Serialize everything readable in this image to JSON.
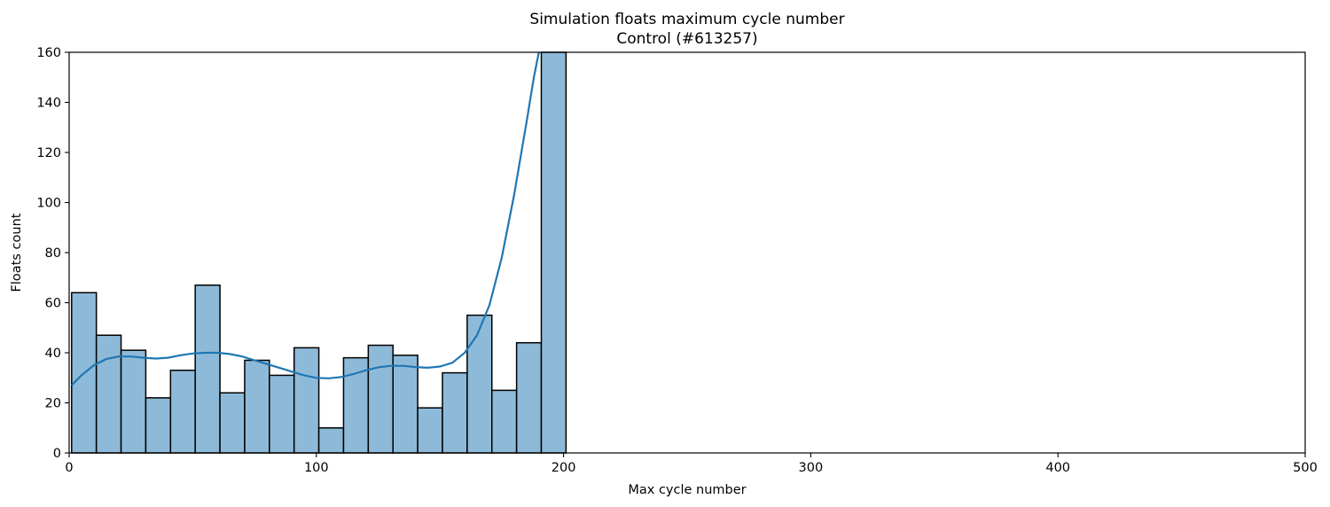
{
  "chart_data": {
    "type": "bar",
    "title": "Simulation floats maximum cycle number",
    "subtitle": "Control (#613257)",
    "xlabel": "Max cycle number",
    "ylabel": "Floats count",
    "xlim": [
      0,
      500
    ],
    "ylim": [
      0,
      160
    ],
    "xticks": [
      0,
      100,
      200,
      300,
      400,
      500
    ],
    "yticks": [
      0,
      20,
      40,
      60,
      80,
      100,
      120,
      140,
      160
    ],
    "grid": false,
    "bar_color": "#8ebad9",
    "bar_edge_color": "#000000",
    "kde_color": "#1f77b4",
    "bins": [
      {
        "start": 1,
        "end": 11,
        "count": 64
      },
      {
        "start": 11,
        "end": 21,
        "count": 47
      },
      {
        "start": 21,
        "end": 31,
        "count": 41
      },
      {
        "start": 31,
        "end": 41,
        "count": 22
      },
      {
        "start": 41,
        "end": 51,
        "count": 33
      },
      {
        "start": 51,
        "end": 61,
        "count": 67
      },
      {
        "start": 61,
        "end": 71,
        "count": 24
      },
      {
        "start": 71,
        "end": 81,
        "count": 37
      },
      {
        "start": 81,
        "end": 91,
        "count": 31
      },
      {
        "start": 91,
        "end": 101,
        "count": 42
      },
      {
        "start": 101,
        "end": 111,
        "count": 10
      },
      {
        "start": 111,
        "end": 121,
        "count": 38
      },
      {
        "start": 121,
        "end": 131,
        "count": 43
      },
      {
        "start": 131,
        "end": 141,
        "count": 39
      },
      {
        "start": 141,
        "end": 151,
        "count": 18
      },
      {
        "start": 151,
        "end": 161,
        "count": 32
      },
      {
        "start": 161,
        "end": 171,
        "count": 55
      },
      {
        "start": 171,
        "end": 181,
        "count": 25
      },
      {
        "start": 181,
        "end": 191,
        "count": 44
      },
      {
        "start": 191,
        "end": 201,
        "count": 160
      }
    ],
    "kde": [
      [
        1,
        27
      ],
      [
        5,
        31
      ],
      [
        10,
        35
      ],
      [
        15,
        37.5
      ],
      [
        20,
        38.5
      ],
      [
        25,
        38.5
      ],
      [
        30,
        38
      ],
      [
        35,
        37.7
      ],
      [
        40,
        38
      ],
      [
        45,
        39
      ],
      [
        50,
        39.7
      ],
      [
        55,
        40
      ],
      [
        60,
        40
      ],
      [
        65,
        39.5
      ],
      [
        70,
        38.5
      ],
      [
        75,
        37
      ],
      [
        80,
        35.5
      ],
      [
        85,
        34
      ],
      [
        90,
        32.5
      ],
      [
        95,
        31
      ],
      [
        100,
        30
      ],
      [
        105,
        29.8
      ],
      [
        110,
        30.3
      ],
      [
        115,
        31.5
      ],
      [
        120,
        33
      ],
      [
        125,
        34.2
      ],
      [
        130,
        34.8
      ],
      [
        135,
        34.8
      ],
      [
        140,
        34.3
      ],
      [
        145,
        34
      ],
      [
        150,
        34.5
      ],
      [
        155,
        36
      ],
      [
        160,
        40
      ],
      [
        165,
        47
      ],
      [
        170,
        59
      ],
      [
        175,
        78
      ],
      [
        180,
        103
      ],
      [
        185,
        132
      ],
      [
        188,
        150
      ],
      [
        190,
        160
      ]
    ]
  }
}
